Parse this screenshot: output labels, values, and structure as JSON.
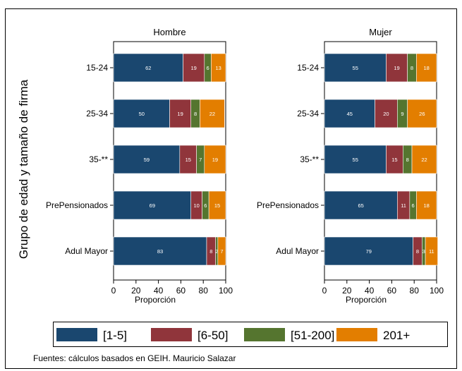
{
  "chart_data": {
    "type": "bar",
    "orientation": "horizontal",
    "stacked": true,
    "ylabel": "Grupo de edad y tamaño de firma",
    "xlabel": "Proporción",
    "xlim": [
      0,
      100
    ],
    "xticks": [
      0,
      20,
      40,
      60,
      80,
      100
    ],
    "categories": [
      "15-24",
      "25-34",
      "35-**",
      "PrePensionados",
      "Adul Mayor"
    ],
    "legend_position": "bottom",
    "series": [
      {
        "name": "[1-5]",
        "color": "#1a476f"
      },
      {
        "name": "[6-50]",
        "color": "#90353b"
      },
      {
        "name": "[51-200]",
        "color": "#55752f"
      },
      {
        "name": "201+",
        "color": "#e37e00"
      }
    ],
    "panels": [
      {
        "title": "Hombre",
        "values": [
          [
            62,
            19,
            6,
            13
          ],
          [
            50,
            19,
            8,
            22
          ],
          [
            59,
            15,
            7,
            19
          ],
          [
            69,
            10,
            6,
            15
          ],
          [
            83,
            8,
            2,
            7
          ]
        ]
      },
      {
        "title": "Mujer",
        "values": [
          [
            55,
            19,
            8,
            18
          ],
          [
            45,
            20,
            9,
            26
          ],
          [
            55,
            15,
            8,
            22
          ],
          [
            65,
            11,
            6,
            18
          ],
          [
            79,
            8,
            3,
            11
          ]
        ]
      }
    ]
  },
  "footer": {
    "source": "Fuentes: cálculos basados en GEIH. Mauricio Salazar"
  }
}
